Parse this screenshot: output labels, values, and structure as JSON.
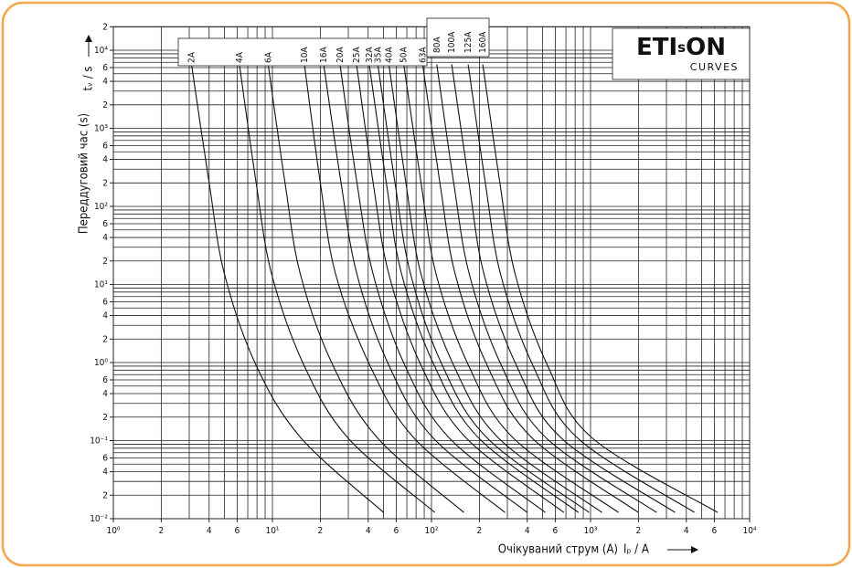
{
  "chart_data": {
    "type": "line",
    "y_label": "Переддуговий час (s)",
    "y_unit": "tᵥ / s",
    "x_label": "Очікуваний струм (A)",
    "x_unit": "Iₚ / A",
    "logo": {
      "parts": [
        "ETI",
        "s",
        "ON"
      ],
      "sub": "CURVES",
      "color": "#c0157a"
    },
    "log_x": true,
    "log_y": true,
    "grid": true,
    "xlim": [
      1,
      10000
    ],
    "ylim": [
      0.01,
      20000
    ],
    "xticks": [
      {
        "value": 1,
        "label": "10⁰"
      },
      2,
      4,
      6,
      {
        "value": 10,
        "label": "10¹"
      },
      {
        "value": 20,
        "label": "2"
      },
      {
        "value": 40,
        "label": "4"
      },
      {
        "value": 60,
        "label": "6"
      },
      {
        "value": 100,
        "label": "10²"
      },
      {
        "value": 200,
        "label": "2"
      },
      {
        "value": 400,
        "label": "4"
      },
      {
        "value": 600,
        "label": "6"
      },
      {
        "value": 1000,
        "label": "10³"
      },
      {
        "value": 2000,
        "label": "2"
      },
      {
        "value": 4000,
        "label": "4"
      },
      {
        "value": 6000,
        "label": "6"
      },
      {
        "value": 10000,
        "label": "10⁴"
      }
    ],
    "yticks": [
      {
        "value": 0.01,
        "label": "10⁻²"
      },
      {
        "value": 0.02,
        "label": "2"
      },
      {
        "value": 0.04,
        "label": "4"
      },
      {
        "value": 0.06,
        "label": "6"
      },
      {
        "value": 0.1,
        "label": "10⁻¹"
      },
      {
        "value": 0.2,
        "label": "2"
      },
      {
        "value": 0.4,
        "label": "4"
      },
      {
        "value": 0.6,
        "label": "6"
      },
      {
        "value": 1,
        "label": "10⁰"
      },
      2,
      4,
      6,
      {
        "value": 10,
        "label": "10¹"
      },
      {
        "value": 20,
        "label": "2"
      },
      {
        "value": 40,
        "label": "4"
      },
      {
        "value": 60,
        "label": "6"
      },
      {
        "value": 100,
        "label": "10²"
      },
      {
        "value": 200,
        "label": "2"
      },
      {
        "value": 400,
        "label": "4"
      },
      {
        "value": 600,
        "label": "6"
      },
      {
        "value": 1000,
        "label": "10³"
      },
      {
        "value": 2000,
        "label": "2"
      },
      {
        "value": 4000,
        "label": "4"
      },
      {
        "value": 6000,
        "label": "6"
      },
      {
        "value": 10000,
        "label": "10⁴"
      },
      {
        "value": 20000,
        "label": "2"
      }
    ],
    "x_grid": [
      1,
      2,
      3,
      4,
      5,
      6,
      7,
      8,
      9,
      10,
      20,
      30,
      40,
      50,
      60,
      70,
      80,
      90,
      100,
      200,
      300,
      400,
      500,
      600,
      700,
      800,
      900,
      1000,
      2000,
      3000,
      4000,
      5000,
      6000,
      7000,
      8000,
      9000,
      10000
    ],
    "y_grid": [
      0.01,
      0.02,
      0.03,
      0.04,
      0.05,
      0.06,
      0.07,
      0.08,
      0.09,
      0.1,
      0.2,
      0.3,
      0.4,
      0.5,
      0.6,
      0.7,
      0.8,
      0.9,
      1,
      2,
      3,
      4,
      5,
      6,
      7,
      8,
      9,
      10,
      20,
      30,
      40,
      50,
      60,
      70,
      80,
      90,
      100,
      200,
      300,
      400,
      500,
      600,
      700,
      800,
      900,
      1000,
      2000,
      3000,
      4000,
      5000,
      6000,
      7000,
      8000,
      9000,
      10000,
      20000
    ],
    "series": [
      {
        "name": "2A",
        "color": "#111111",
        "x": [
          3.1,
          4.0,
          5.0,
          7.9,
          15.2,
          50
        ],
        "values": [
          6600,
          200,
          13.5,
          0.92,
          0.107,
          0.012
        ]
      },
      {
        "name": "4A",
        "color": "#111111",
        "x": [
          6.2,
          7.9,
          9.9,
          15.8,
          30,
          105
        ],
        "values": [
          6600,
          200,
          13.5,
          0.92,
          0.107,
          0.012
        ]
      },
      {
        "name": "6A",
        "color": "#111111",
        "x": [
          9.4,
          12,
          15,
          24,
          46,
          160
        ],
        "values": [
          6600,
          200,
          13.5,
          0.92,
          0.107,
          0.012
        ]
      },
      {
        "name": "10A",
        "color": "#111111",
        "x": [
          15.9,
          20,
          25,
          41,
          78,
          290
        ],
        "values": [
          6600,
          200,
          13.5,
          0.92,
          0.107,
          0.012
        ]
      },
      {
        "name": "16A",
        "color": "#111111",
        "x": [
          21,
          27,
          34,
          54,
          103,
          400
        ],
        "values": [
          6600,
          200,
          13.5,
          0.92,
          0.107,
          0.012
        ]
      },
      {
        "name": "20A",
        "color": "#111111",
        "x": [
          26.6,
          34,
          43,
          68,
          130,
          520
        ],
        "values": [
          6600,
          200,
          13.5,
          0.92,
          0.107,
          0.012
        ]
      },
      {
        "name": "25A",
        "color": "#111111",
        "x": [
          33.8,
          43,
          54,
          86,
          166,
          680
        ],
        "values": [
          6600,
          200,
          13.5,
          0.92,
          0.107,
          0.012
        ]
      },
      {
        "name": "32A",
        "color": "#111111",
        "x": [
          40.6,
          52,
          65,
          104,
          199,
          840
        ],
        "values": [
          6600,
          200,
          13.5,
          0.92,
          0.107,
          0.012
        ]
      },
      {
        "name": "35A",
        "color": "#111111",
        "x": [
          46,
          59,
          74,
          117,
          225,
          980
        ],
        "values": [
          6600,
          200,
          13.5,
          0.92,
          0.107,
          0.012
        ]
      },
      {
        "name": "40A",
        "color": "#111111",
        "x": [
          54,
          69,
          86,
          138,
          265,
          1180
        ],
        "values": [
          6600,
          200,
          13.5,
          0.92,
          0.107,
          0.012
        ]
      },
      {
        "name": "50A",
        "color": "#111111",
        "x": [
          67,
          86,
          107,
          171,
          328,
          1500
        ],
        "values": [
          6600,
          200,
          13.5,
          0.92,
          0.107,
          0.012
        ]
      },
      {
        "name": "63A",
        "color": "#111111",
        "x": [
          88,
          113,
          141,
          224,
          431,
          2000
        ],
        "values": [
          6600,
          200,
          13.5,
          0.92,
          0.107,
          0.012
        ]
      },
      {
        "name": "80A",
        "color": "#111111",
        "x": [
          108,
          138,
          173,
          275,
          529,
          2600
        ],
        "values": [
          6600,
          200,
          13.5,
          0.92,
          0.107,
          0.012
        ]
      },
      {
        "name": "100A",
        "color": "#111111",
        "x": [
          134,
          172,
          214,
          342,
          657,
          3400
        ],
        "values": [
          6600,
          200,
          13.5,
          0.92,
          0.107,
          0.012
        ]
      },
      {
        "name": "125A",
        "color": "#111111",
        "x": [
          170,
          218,
          272,
          434,
          833,
          4500
        ],
        "values": [
          6600,
          200,
          13.5,
          0.92,
          0.107,
          0.012
        ]
      },
      {
        "name": "160A",
        "color": "#111111",
        "x": [
          210,
          269,
          336,
          536,
          1029,
          6300
        ],
        "values": [
          6600,
          200,
          13.5,
          0.92,
          0.107,
          0.012
        ]
      }
    ]
  }
}
